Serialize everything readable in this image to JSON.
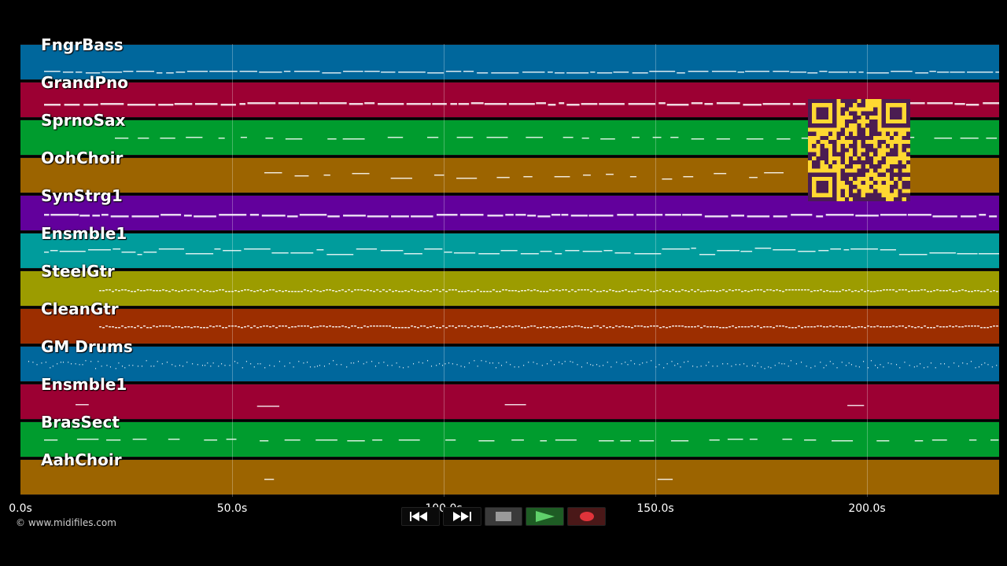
{
  "tracks": [
    {
      "name": "FngrBass",
      "color": "#00679c"
    },
    {
      "name": "GrandPno",
      "color": "#9c0033"
    },
    {
      "name": "SprnoSax",
      "color": "#009c2e"
    },
    {
      "name": "OohChoir",
      "color": "#9c6400"
    },
    {
      "name": "SynStrg1",
      "color": "#62009c"
    },
    {
      "name": "Ensmble1",
      "color": "#009c9c"
    },
    {
      "name": "SteelGtr",
      "color": "#9c9c00"
    },
    {
      "name": "CleanGtr",
      "color": "#9c2e00"
    },
    {
      "name": "GM Drums",
      "color": "#00679c"
    },
    {
      "name": "Ensmble1",
      "color": "#9c0033"
    },
    {
      "name": "BrasSect",
      "color": "#009c2e"
    },
    {
      "name": "AahChoir",
      "color": "#9c6400"
    }
  ],
  "timeline": {
    "ticks": [
      "0.0s",
      "50.0s",
      "100.0s",
      "150.0s",
      "200.0s"
    ]
  },
  "copyright": "© www.midifiles.com",
  "controls": {
    "rewind_icon": "rewind-icon",
    "forward_icon": "fast-forward-icon",
    "stop_icon": "stop-icon",
    "play_icon": "play-icon",
    "record_icon": "record-icon"
  }
}
